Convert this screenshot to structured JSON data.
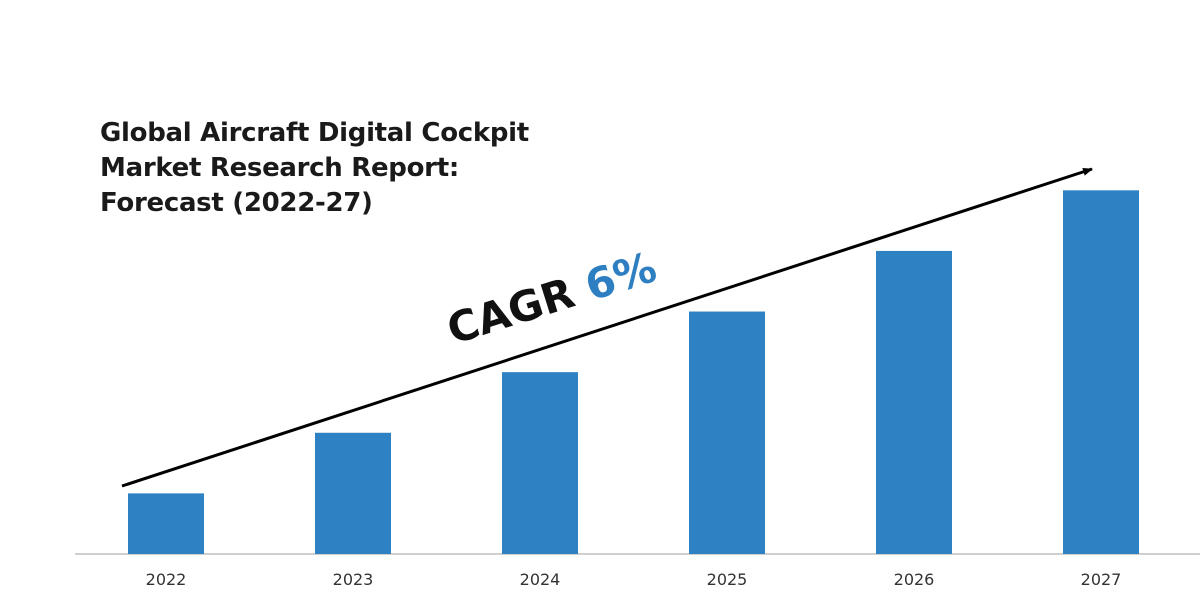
{
  "chart_data": {
    "type": "bar",
    "title_lines": [
      "Global Aircraft Digital Cockpit",
      "Market Research Report:",
      "Forecast (2022-27)"
    ],
    "categories": [
      "2022",
      "2023",
      "2024",
      "2025",
      "2026",
      "2027"
    ],
    "values": [
      10,
      20,
      30,
      40,
      50,
      60
    ],
    "ylim": [
      0,
      65
    ],
    "annotation": {
      "prefix": "CAGR ",
      "value": "6%"
    },
    "colors": {
      "bar": "#2e81c3",
      "axis": "#bfbfbf",
      "arrow": "#000000",
      "text": "#1a1a1a",
      "accent": "#2e7fc1"
    },
    "grid": false,
    "legend": "none"
  }
}
